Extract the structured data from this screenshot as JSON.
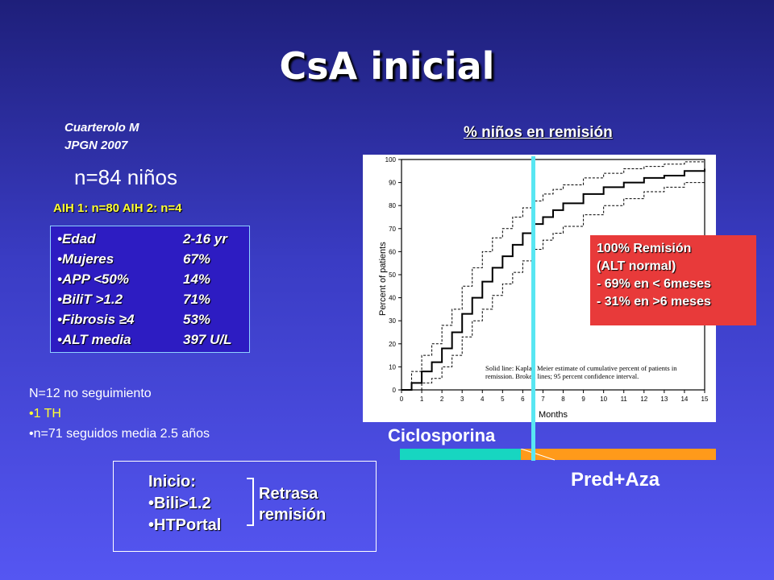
{
  "title": "CsA inicial",
  "citation": {
    "author": "Cuarterolo M",
    "journal": "JPGN 2007"
  },
  "cohort": "n=84 niños",
  "aih_types": "AIH 1: n=80  AIH 2: n=4",
  "characteristics": [
    {
      "label": "•Edad",
      "value": "2-16 yr"
    },
    {
      "label": "•Mujeres",
      "value": "67%"
    },
    {
      "label": "•APP <50%",
      "value": "14%"
    },
    {
      "label": "•BiliT >1.2",
      "value": "71%"
    },
    {
      "label": "•Fibrosis ≥4",
      "value": "53%"
    },
    {
      "label": "•ALT media",
      "value": "397 U/L"
    }
  ],
  "followup": {
    "lost": "N=12 no seguimiento",
    "transplant": "•1 TH",
    "followed": "•n=71 seguidos media 2.5 años"
  },
  "chart": {
    "heading": "% niños en remisión",
    "ylabel": "Percent of patients",
    "xlabel": "Months",
    "legend_line1": "Solid line: Kaplan Meier estimate of cumulative percent of patients in",
    "legend_line2": "remission. Broken lines; 95 percent confidence interval.",
    "marker_month": 6.5
  },
  "chart_data": {
    "type": "line",
    "title": "",
    "xlabel": "Months",
    "ylabel": "Percent of patients",
    "xlim": [
      0,
      15
    ],
    "ylim": [
      0,
      100
    ],
    "x_ticks": [
      "0",
      "1",
      "2",
      "3",
      "4",
      "5",
      "6",
      "7",
      "8",
      "9",
      "10",
      "11",
      "12",
      "13",
      "14",
      "15"
    ],
    "y_ticks": [
      "0",
      "10",
      "20",
      "30",
      "40",
      "50",
      "60",
      "70",
      "80",
      "90",
      "100"
    ],
    "series": [
      {
        "style": "solid",
        "x": [
          0,
          0.5,
          1,
          1.5,
          2,
          2.5,
          3,
          3.5,
          4,
          4.5,
          5,
          5.5,
          6,
          6.5,
          7,
          7.5,
          8,
          9,
          10,
          11,
          12,
          13,
          14,
          15
        ],
        "values": [
          0,
          3,
          8,
          12,
          18,
          25,
          33,
          40,
          47,
          53,
          58,
          63,
          68,
          72,
          75,
          78,
          81,
          85,
          88,
          90,
          92,
          93,
          95,
          96
        ]
      },
      {
        "style": "dashed",
        "x": [
          0,
          0.5,
          1,
          1.5,
          2,
          2.5,
          3,
          3.5,
          4,
          4.5,
          5,
          5.5,
          6,
          6.5,
          7,
          7.5,
          8,
          9,
          10,
          11,
          12,
          13,
          14,
          15
        ],
        "values": [
          0,
          8,
          15,
          20,
          28,
          35,
          45,
          53,
          60,
          66,
          70,
          75,
          79,
          82,
          85,
          87,
          89,
          92,
          94,
          96,
          97,
          98,
          99,
          100
        ]
      },
      {
        "style": "dashed",
        "x": [
          0,
          0.5,
          1,
          1.5,
          2,
          2.5,
          3,
          3.5,
          4,
          4.5,
          5,
          5.5,
          6,
          6.5,
          7,
          7.5,
          8,
          9,
          10,
          11,
          12,
          13,
          14,
          15
        ],
        "values": [
          0,
          0,
          3,
          5,
          10,
          15,
          23,
          30,
          35,
          41,
          46,
          51,
          56,
          61,
          65,
          68,
          71,
          76,
          80,
          83,
          86,
          88,
          90,
          92
        ]
      }
    ]
  },
  "remission_box": [
    "100% Remisión",
    "(ALT normal)",
    "- 69% en < 6meses",
    "- 31% en >6 meses"
  ],
  "treatment": {
    "cyclo": "Ciclosporina",
    "predaza": "Pred+Aza"
  },
  "colors": {
    "cyclo_bar": "#17d6c1",
    "predaza_bar": "#ff9a1a",
    "marker": "#58e6f2",
    "remission_bg": "#e83a3a",
    "highlight": "#ffff33"
  },
  "start": {
    "heading": "Inicio:",
    "items": [
      "•Bili>1.2",
      "•HTPortal"
    ],
    "effect_line1": "Retrasa",
    "effect_line2": "remisión"
  }
}
